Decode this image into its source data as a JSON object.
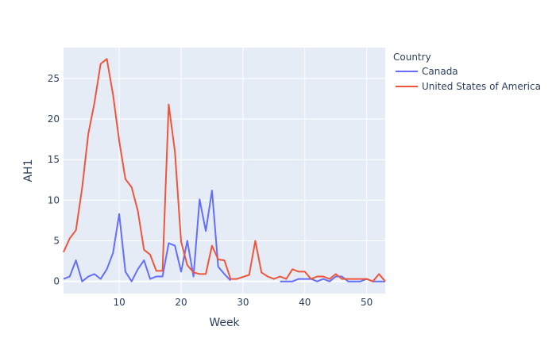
{
  "chart_data": {
    "type": "line",
    "xlabel": "Week",
    "ylabel": "AH1",
    "xlim": [
      1,
      53
    ],
    "ylim": [
      -1.5,
      28.8
    ],
    "x_ticks": [
      10,
      20,
      30,
      40,
      50
    ],
    "y_ticks": [
      0,
      5,
      10,
      15,
      20,
      25
    ],
    "grid": true,
    "legend": {
      "title": "Country",
      "position": "top-right"
    },
    "series": [
      {
        "name": "Canada",
        "color": "#636efa",
        "points": [
          [
            1,
            0.3
          ],
          [
            2,
            0.6
          ],
          [
            3,
            2.6
          ],
          [
            4,
            0.0
          ],
          [
            5,
            0.6
          ],
          [
            6,
            0.9
          ],
          [
            7,
            0.3
          ],
          [
            8,
            1.5
          ],
          [
            9,
            3.5
          ],
          [
            10,
            8.3
          ],
          [
            11,
            1.2
          ],
          [
            12,
            0.0
          ],
          [
            13,
            1.5
          ],
          [
            14,
            2.6
          ],
          [
            15,
            0.3
          ],
          [
            16,
            0.6
          ],
          [
            17,
            0.6
          ],
          [
            18,
            4.7
          ],
          [
            19,
            4.4
          ],
          [
            20,
            1.2
          ],
          [
            21,
            5.0
          ],
          [
            22,
            0.6
          ],
          [
            23,
            10.1
          ],
          [
            24,
            6.2
          ],
          [
            25,
            11.2
          ],
          [
            26,
            1.8
          ],
          [
            27,
            0.9
          ],
          [
            28,
            0.1
          ],
          null,
          [
            36,
            0.0
          ],
          [
            37,
            0.0
          ],
          [
            38,
            0.0
          ],
          [
            39,
            0.3
          ],
          [
            40,
            0.3
          ],
          [
            41,
            0.3
          ],
          [
            42,
            0.0
          ],
          [
            43,
            0.3
          ],
          [
            44,
            0.0
          ],
          [
            45,
            0.6
          ],
          [
            46,
            0.6
          ],
          [
            47,
            0.0
          ],
          [
            48,
            0.0
          ],
          [
            49,
            0.0
          ],
          [
            50,
            0.3
          ],
          [
            51,
            0.0
          ],
          [
            52,
            0.0
          ],
          [
            53,
            0.0
          ]
        ]
      },
      {
        "name": "United States of America",
        "color": "#ef553b",
        "points": [
          [
            1,
            3.6
          ],
          [
            2,
            5.3
          ],
          [
            3,
            6.3
          ],
          [
            4,
            11.5
          ],
          [
            5,
            18.2
          ],
          [
            6,
            22.0
          ],
          [
            7,
            26.8
          ],
          [
            8,
            27.4
          ],
          [
            9,
            23.0
          ],
          [
            10,
            17.3
          ],
          [
            11,
            12.6
          ],
          [
            12,
            11.6
          ],
          [
            13,
            8.7
          ],
          [
            14,
            3.9
          ],
          [
            15,
            3.3
          ],
          [
            16,
            1.3
          ],
          [
            17,
            1.3
          ],
          [
            18,
            21.8
          ],
          [
            19,
            16.0
          ],
          [
            20,
            4.9
          ],
          [
            21,
            2.0
          ],
          [
            22,
            1.1
          ],
          [
            23,
            0.9
          ],
          [
            24,
            0.9
          ],
          [
            25,
            4.4
          ],
          [
            26,
            2.7
          ],
          [
            27,
            2.6
          ],
          [
            28,
            0.3
          ],
          [
            29,
            0.3
          ],
          [
            31,
            0.8
          ],
          [
            32,
            5.0
          ],
          [
            33,
            1.1
          ],
          [
            34,
            0.6
          ],
          [
            35,
            0.3
          ],
          [
            36,
            0.6
          ],
          [
            37,
            0.3
          ],
          [
            38,
            1.5
          ],
          [
            39,
            1.2
          ],
          [
            40,
            1.2
          ],
          [
            41,
            0.3
          ],
          [
            42,
            0.6
          ],
          [
            43,
            0.6
          ],
          [
            44,
            0.3
          ],
          [
            45,
            0.9
          ],
          [
            46,
            0.3
          ],
          [
            47,
            0.3
          ],
          [
            48,
            0.3
          ],
          [
            49,
            0.3
          ],
          [
            50,
            0.3
          ],
          [
            51,
            0.0
          ],
          [
            52,
            0.9
          ],
          [
            53,
            0.0
          ]
        ]
      }
    ]
  }
}
